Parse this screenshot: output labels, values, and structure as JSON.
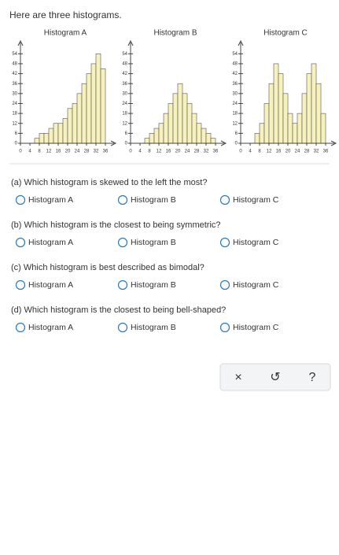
{
  "intro": "Here are three histograms.",
  "chart_data": [
    {
      "type": "histogram",
      "title": "Histogram A",
      "color": "#f6f1bd",
      "bins": [
        6,
        8,
        10,
        12,
        14,
        16,
        18,
        20,
        22,
        24,
        26,
        28,
        30,
        32,
        34,
        36
      ],
      "counts": [
        3,
        6,
        6,
        9,
        12,
        12,
        15,
        21,
        24,
        30,
        36,
        42,
        48,
        54,
        45
      ],
      "xlim": [
        0,
        38
      ],
      "ylim": [
        0,
        57
      ],
      "xticks": [
        0,
        4,
        8,
        12,
        16,
        20,
        24,
        28,
        32,
        36
      ],
      "yticks": [
        0,
        6,
        12,
        18,
        24,
        30,
        36,
        42,
        48,
        54
      ]
    },
    {
      "type": "histogram",
      "title": "Histogram B",
      "color": "#f6f1bd",
      "bins": [
        6,
        8,
        10,
        12,
        14,
        16,
        18,
        20,
        22,
        24,
        26,
        28,
        30,
        32,
        34,
        36
      ],
      "counts": [
        3,
        6,
        9,
        12,
        18,
        24,
        30,
        36,
        30,
        24,
        18,
        12,
        9,
        6,
        3
      ],
      "xlim": [
        0,
        38
      ],
      "ylim": [
        0,
        57
      ],
      "xticks": [
        0,
        4,
        8,
        12,
        16,
        20,
        24,
        28,
        32,
        36
      ],
      "yticks": [
        0,
        6,
        12,
        18,
        24,
        30,
        36,
        42,
        48,
        54
      ]
    },
    {
      "type": "histogram",
      "title": "Histogram C",
      "color": "#f6f1bd",
      "bins": [
        6,
        8,
        10,
        12,
        14,
        16,
        18,
        20,
        22,
        24,
        26,
        28,
        30,
        32,
        34,
        36
      ],
      "counts": [
        6,
        12,
        24,
        36,
        48,
        42,
        30,
        18,
        12,
        18,
        30,
        42,
        48,
        36,
        18
      ],
      "xlim": [
        0,
        38
      ],
      "ylim": [
        0,
        57
      ],
      "xticks": [
        0,
        4,
        8,
        12,
        16,
        20,
        24,
        28,
        32,
        36
      ],
      "yticks": [
        0,
        6,
        12,
        18,
        24,
        30,
        36,
        42,
        48,
        54
      ]
    }
  ],
  "questions": [
    {
      "text": "(a) Which histogram is skewed to the left the most?",
      "options": [
        "Histogram A",
        "Histogram B",
        "Histogram C"
      ]
    },
    {
      "text": "(b) Which histogram is the closest to being symmetric?",
      "options": [
        "Histogram A",
        "Histogram B",
        "Histogram C"
      ]
    },
    {
      "text": "(c) Which histogram is best described as bimodal?",
      "options": [
        "Histogram A",
        "Histogram B",
        "Histogram C"
      ]
    },
    {
      "text": "(d) Which histogram is the closest to being bell-shaped?",
      "options": [
        "Histogram A",
        "Histogram B",
        "Histogram C"
      ]
    }
  ],
  "controls": [
    "×",
    "↺",
    "?"
  ]
}
